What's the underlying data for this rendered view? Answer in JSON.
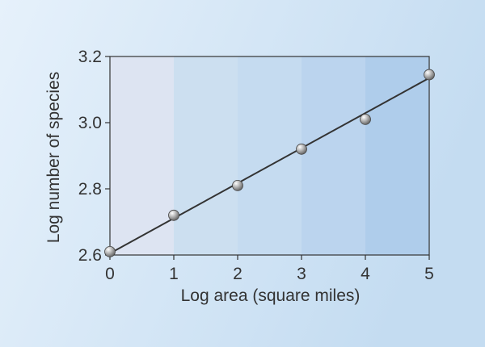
{
  "chart_data": {
    "type": "scatter",
    "title": "",
    "xlabel": "Log area (square miles)",
    "ylabel": "Log number of species",
    "xlim": [
      0,
      5
    ],
    "ylim": [
      2.6,
      3.2
    ],
    "x_ticks": [
      "0",
      "1",
      "2",
      "3",
      "4",
      "5"
    ],
    "y_ticks": [
      "2.6",
      "2.8",
      "3.0",
      "3.2"
    ],
    "points": [
      {
        "x": 0,
        "y": 2.61
      },
      {
        "x": 1,
        "y": 2.72
      },
      {
        "x": 2,
        "y": 2.81
      },
      {
        "x": 3,
        "y": 2.92
      },
      {
        "x": 4,
        "y": 3.01
      },
      {
        "x": 5,
        "y": 3.145
      }
    ],
    "trend_line": {
      "x": [
        0,
        5
      ],
      "y": [
        2.605,
        3.135
      ]
    },
    "grid": false,
    "band_colors": [
      "#dde4f2",
      "#ccdff0",
      "#c5dbf0",
      "#bbd4ee",
      "#afcdeb"
    ],
    "line_color": "#333333",
    "marker_color": "#9e9e9e"
  }
}
